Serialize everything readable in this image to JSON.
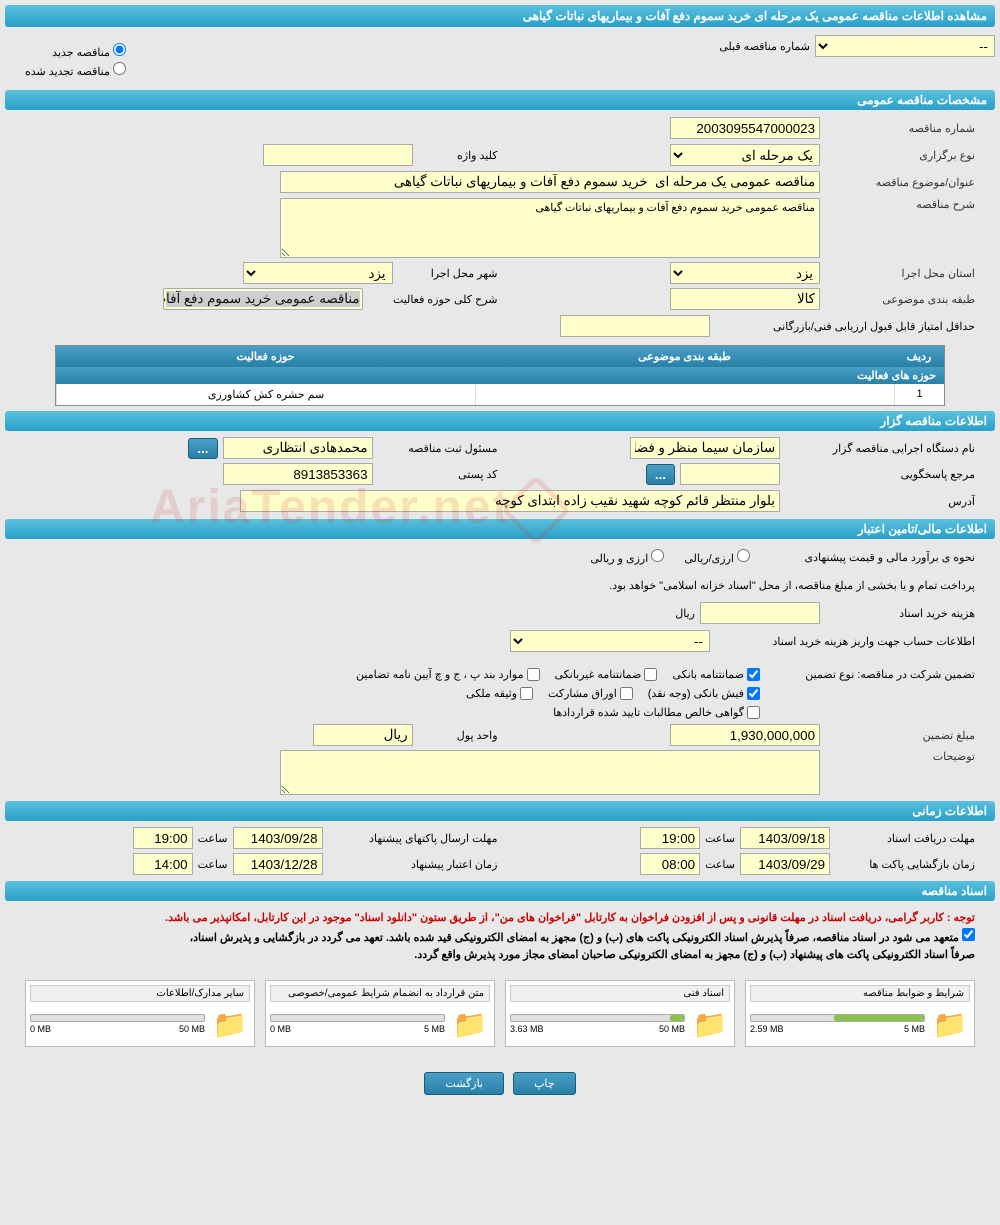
{
  "page_title": "مشاهده اطلاعات مناقصه عمومی یک مرحله ای خرید سموم دفع آفات و بیماریهای نباتات گیاهی",
  "radios": {
    "new_tender": "مناقصه جدید",
    "renewed_tender": "مناقصه تجدید شده"
  },
  "prev_tender": {
    "label": "شماره مناقصه قبلی",
    "value": "--"
  },
  "section_general": "مشخصات مناقصه عمومی",
  "tender_number": {
    "label": "شماره مناقصه",
    "value": "2003095547000023"
  },
  "hold_type": {
    "label": "نوع برگزاری",
    "value": "یک مرحله ای"
  },
  "keyword": {
    "label": "کلید واژه",
    "value": ""
  },
  "subject": {
    "label": "عنوان/موضوع مناقصه",
    "value": "مناقصه عمومی یک مرحله ای  خرید سموم دفع آفات و بیماریهای نباتات گیاهی"
  },
  "description": {
    "label": "شرح مناقصه",
    "value": "مناقصه عمومی خرید سموم دفع آفات و بیماریهای نباتات گیاهی"
  },
  "province": {
    "label": "استان محل اجرا",
    "value": "یزد"
  },
  "city": {
    "label": "شهر محل اجرا",
    "value": "یزد"
  },
  "category": {
    "label": "طبقه بندی موضوعی",
    "value": "کالا"
  },
  "activity_desc": {
    "label": "شرح کلی حوزه فعالیت",
    "value": "مناقصه عمومی خرید سموم دفع آفات و"
  },
  "min_score": {
    "label": "حداقل امتیاز قابل قبول ارزیابی فنی/بازرگانی",
    "value": ""
  },
  "activity_table": {
    "title": "حوزه های فعالیت",
    "headers": {
      "row": "ردیف",
      "category": "طبقه بندی موضوعی",
      "activity": "حوزه فعالیت"
    },
    "rows": [
      {
        "row": "1",
        "category": "",
        "activity": "سم حشره کش کشاورزی"
      }
    ]
  },
  "section_organizer": "اطلاعات مناقصه گزار",
  "org_name": {
    "label": "نام دستگاه اجرایی مناقصه گزار",
    "value": "سازمان سیما منظر و فضای"
  },
  "registrar": {
    "label": "مسئول ثبت مناقصه",
    "value": "محمدهادی انتظاری"
  },
  "respond_ref": {
    "label": "مرجع پاسخگویی",
    "value": ""
  },
  "postal_code": {
    "label": "کد پستی",
    "value": "8913853363"
  },
  "address": {
    "label": "آدرس",
    "value": "بلوار منتظر قائم کوچه شهید نقیب زاده ابتدای کوچه"
  },
  "section_financial": "اطلاعات مالی/تامین اعتبار",
  "estimate_method": {
    "label": "نحوه ی برآورد مالی و  قیمت پیشنهادی",
    "options": {
      "fx": "ارزی/ریالی",
      "rial": "ارزی و ریالی"
    }
  },
  "treasury_notice": "پرداخت تمام و یا بخشی از مبلغ مناقصه، از محل \"اسناد خزانه اسلامی\" خواهد بود.",
  "doc_fee": {
    "label": "هزینه خرید اسناد",
    "value": "",
    "unit": "ریال"
  },
  "deposit_account": {
    "label": "اطلاعات حساب جهت واریز هزینه خرید اسناد",
    "value": "--"
  },
  "guarantee_type_label": "تضمین شرکت در مناقصه:   نوع تضمین",
  "guarantees": {
    "bank": "ضمانتنامه بانکی",
    "nonbank": "ضمانتنامه غیربانکی",
    "bylaw": "موارد بند پ ، ج و چ آیین نامه تضامین",
    "cash": "فیش بانکی (وجه نقد)",
    "shares": "اوراق مشارکت",
    "property": "وثیقه ملکی",
    "cert": "گواهی خالص مطالبات تایید شده قراردادها"
  },
  "guarantee_amount": {
    "label": "مبلغ تضمین",
    "value": "1,930,000,000"
  },
  "currency_unit": {
    "label": "واحد پول",
    "value": "ریال"
  },
  "notes": {
    "label": "توضیحات",
    "value": ""
  },
  "section_time": "اطلاعات زمانی",
  "receive_deadline": {
    "label": "مهلت دریافت اسناد",
    "date": "1403/09/18",
    "time_label": "ساعت",
    "time": "19:00"
  },
  "submit_deadline": {
    "label": "مهلت ارسال پاکتهای پیشنهاد",
    "date": "1403/09/28",
    "time_label": "ساعت",
    "time": "19:00"
  },
  "open_time": {
    "label": "زمان بازگشایی پاکت ها",
    "date": "1403/09/29",
    "time_label": "ساعت",
    "time": "08:00"
  },
  "validity_time": {
    "label": "زمان اعتبار پیشنهاد",
    "date": "1403/12/28",
    "time_label": "ساعت",
    "time": "14:00"
  },
  "section_docs": "اسناد مناقصه",
  "notice_red": "توجه : کاربر گرامی، دریافت اسناد در مهلت قانونی و پس از افزودن فراخوان به کارتابل \"فراخوان های من\"، از طریق ستون \"دانلود اسناد\" موجود در این کارتابل، امکانپذیر می باشد.",
  "notice_black1": "متعهد می شود در اسناد مناقصه، صرفاً پذیرش اسناد الکترونیکی پاکت های (ب) و (ج) مجهز به امضای الکترونیکی قید شده باشد. تعهد می گردد در بازگشایی و پذیرش اسناد،",
  "notice_black2": "صرفاً اسناد الکترونیکی پاکت های پیشنهاد (ب) و (ج) مجهز به امضای الکترونیکی صاحبان امضای مجاز مورد پذیرش واقع گردد.",
  "documents": [
    {
      "title": "شرایط و ضوابط مناقصه",
      "used": "2.59 MB",
      "total": "5 MB",
      "percent": 52
    },
    {
      "title": "اسناد فنی",
      "used": "3.63 MB",
      "total": "50 MB",
      "percent": 8
    },
    {
      "title": "متن قرارداد به انضمام شرایط عمومی/خصوصی",
      "used": "0 MB",
      "total": "5 MB",
      "percent": 0
    },
    {
      "title": "سایر مدارک/اطلاعات",
      "used": "0 MB",
      "total": "50 MB",
      "percent": 0
    }
  ],
  "buttons": {
    "print": "چاپ",
    "back": "بازگشت"
  },
  "colors": {
    "header_bg_top": "#5bc0de",
    "header_bg_bottom": "#28a0c8",
    "yellow_field": "#ffffcc",
    "progress_fill": "#8bc34a",
    "red_text": "#cc0000"
  }
}
